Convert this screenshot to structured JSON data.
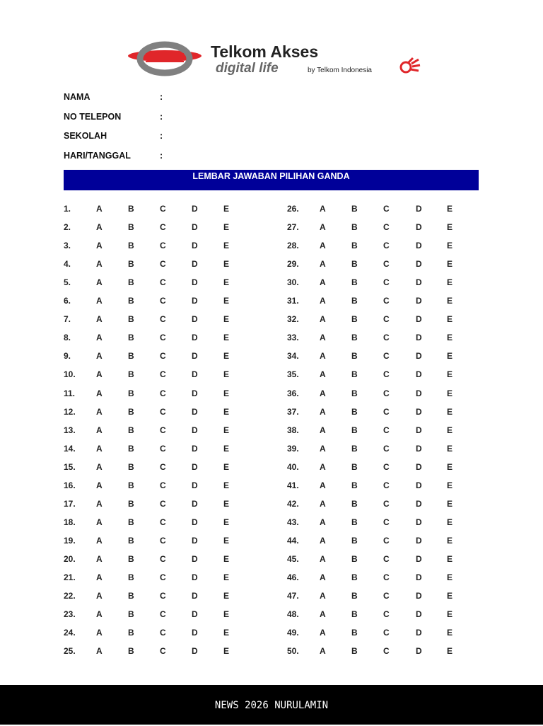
{
  "logo": {
    "title": "Telkom Akses",
    "tagline": "digital life",
    "byline": "by Telkom Indonesia",
    "colors": {
      "red": "#e0262a",
      "gray": "#808080"
    }
  },
  "fields": [
    {
      "label": "NAMA",
      "colon": ":"
    },
    {
      "label": "NO TELEPON",
      "colon": ":"
    },
    {
      "label": "SEKOLAH",
      "colon": ":"
    },
    {
      "label": "HARI/TANGGAL",
      "colon": ":"
    }
  ],
  "banner": {
    "title": "LEMBAR JAWABAN PILIHAN GANDA",
    "color": "#000099"
  },
  "options": [
    "A",
    "B",
    "C",
    "D",
    "E"
  ],
  "questions_left": [
    "1.",
    "2.",
    "3.",
    "4.",
    "5.",
    "6.",
    "7.",
    "8.",
    "9.",
    "10.",
    "11.",
    "12.",
    "13.",
    "14.",
    "15.",
    "16.",
    "17.",
    "18.",
    "19.",
    "20.",
    "21.",
    "22.",
    "23.",
    "24.",
    "25."
  ],
  "questions_right": [
    "26.",
    "27.",
    "28.",
    "29.",
    "30.",
    "31.",
    "32.",
    "33.",
    "34.",
    "35.",
    "36.",
    "37.",
    "38.",
    "39.",
    "40.",
    "41.",
    "42.",
    "43.",
    "44.",
    "45.",
    "46.",
    "47.",
    "48.",
    "49.",
    "50."
  ],
  "footer": {
    "text": "NEWS 2026 NURULAMIN"
  }
}
